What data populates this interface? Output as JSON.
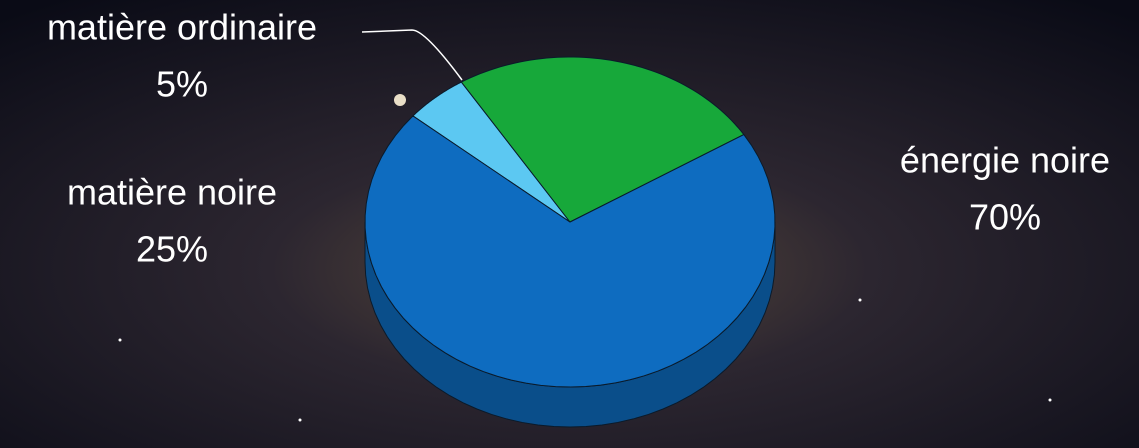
{
  "chart_data": {
    "type": "pie",
    "categories": [
      "matière ordinaire",
      "matière noire",
      "énergie noire"
    ],
    "values": [
      5,
      25,
      70
    ],
    "value_labels": [
      "5%",
      "25%",
      "70%"
    ],
    "colors": [
      "#5cc8f2",
      "#17a83a",
      "#0e6cc0"
    ]
  }
}
